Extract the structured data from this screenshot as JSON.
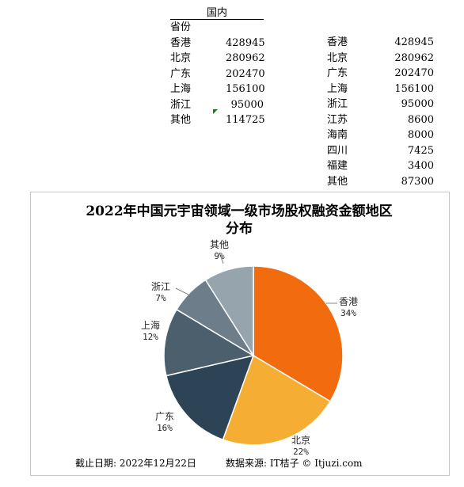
{
  "left_table": {
    "group_header": "国内",
    "column_header": "省份",
    "rows": [
      {
        "name": "香港",
        "value": "428945"
      },
      {
        "name": "北京",
        "value": "280962"
      },
      {
        "name": "广东",
        "value": "202470"
      },
      {
        "name": "上海",
        "value": "156100"
      },
      {
        "name": "浙江",
        "value": "95000"
      },
      {
        "name": "其他",
        "value": "114725"
      }
    ]
  },
  "right_table": {
    "rows": [
      {
        "name": "香港",
        "value": "428945"
      },
      {
        "name": "北京",
        "value": "280962"
      },
      {
        "name": "广东",
        "value": "202470"
      },
      {
        "name": "上海",
        "value": "156100"
      },
      {
        "name": "浙江",
        "value": "95000"
      },
      {
        "name": "江苏",
        "value": "8600"
      },
      {
        "name": "海南",
        "value": "8000"
      },
      {
        "name": "四川",
        "value": "7425"
      },
      {
        "name": "福建",
        "value": "3400"
      },
      {
        "name": "其他",
        "value": "87300"
      }
    ]
  },
  "chart_data": {
    "type": "pie",
    "title_line1": "2022年中国元宇宙领域一级市场股权融资金额地区",
    "title_line2": "分布",
    "categories": [
      "香港",
      "北京",
      "广东",
      "上海",
      "浙江",
      "其他"
    ],
    "values": [
      428945,
      280962,
      202470,
      156100,
      95000,
      114725
    ],
    "percent_labels": [
      "34%",
      "22%",
      "16%",
      "12%",
      "7%",
      "9%"
    ],
    "colors": [
      "#f26b0f",
      "#f5ae33",
      "#2d4456",
      "#4c5f6d",
      "#6e7d8a",
      "#96a4ae"
    ]
  },
  "footer": {
    "date_text": "截止日期: 2022年12月22日",
    "source_text": "数据来源: IT桔子 © Itjuzi.com"
  }
}
